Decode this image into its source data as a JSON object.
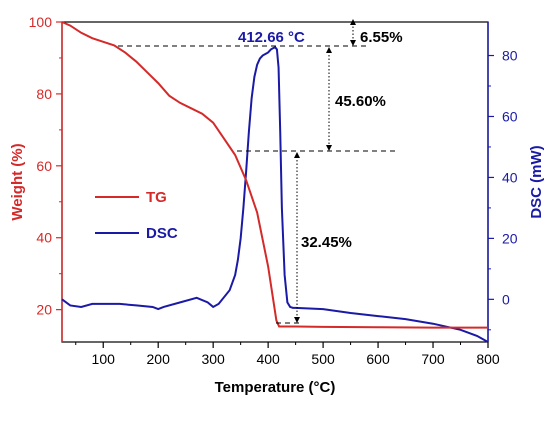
{
  "chart_data": {
    "type": "line",
    "xlabel": "Temperature (°C)",
    "ylabel_left": "Weight (%)",
    "ylabel_right": "DSC (mW)",
    "xlim": [
      25,
      800
    ],
    "ylim_left": [
      11,
      100
    ],
    "ylim_right": [
      -14,
      91
    ],
    "xticks": [
      100,
      200,
      300,
      400,
      500,
      600,
      700,
      800
    ],
    "yticks_left": [
      20,
      40,
      60,
      80,
      100
    ],
    "yticks_right": [
      0,
      20,
      40,
      60,
      80
    ],
    "colors": {
      "TG": "#d42a2a",
      "DSC": "#1a1aa6",
      "axis": "#000000"
    },
    "legend_position": "center-left",
    "series": [
      {
        "name": "TG",
        "axis": "left",
        "x": [
          25,
          40,
          60,
          80,
          100,
          120,
          140,
          160,
          180,
          200,
          220,
          240,
          260,
          280,
          300,
          320,
          340,
          360,
          380,
          400,
          410,
          415,
          420,
          430,
          450,
          500,
          600,
          700,
          750,
          800
        ],
        "y": [
          100,
          99,
          97,
          95.5,
          94.5,
          93.5,
          91.5,
          89,
          86,
          83,
          79.5,
          77.5,
          76,
          74.5,
          72,
          67.5,
          63,
          56,
          47,
          32,
          22,
          17,
          15.3,
          15.3,
          15.3,
          15.2,
          15.1,
          15.0,
          15.0,
          15.0
        ]
      },
      {
        "name": "DSC",
        "axis": "right",
        "x": [
          25,
          40,
          60,
          80,
          100,
          130,
          160,
          190,
          200,
          210,
          240,
          270,
          290,
          300,
          310,
          330,
          340,
          345,
          350,
          355,
          360,
          365,
          370,
          375,
          380,
          385,
          390,
          395,
          400,
          405,
          410,
          413,
          416,
          419,
          422,
          425,
          430,
          435,
          440,
          445,
          450,
          500,
          550,
          600,
          650,
          700,
          750,
          780,
          800
        ],
        "y": [
          0,
          -2,
          -2.5,
          -1.5,
          -1.5,
          -1.5,
          -2,
          -2.5,
          -3.2,
          -2.5,
          -1,
          0.5,
          -1,
          -2.5,
          -1.5,
          3,
          8,
          13,
          20,
          30,
          42,
          55,
          66,
          73,
          77,
          79,
          80,
          80.5,
          81,
          82,
          82.5,
          82.66,
          82,
          76,
          55,
          30,
          8,
          -1,
          -2.5,
          -2.8,
          -2.8,
          -3.2,
          -4.5,
          -5.5,
          -6.5,
          -8,
          -10,
          -12,
          -14
        ]
      }
    ],
    "annotations": {
      "peak_label": "412.66 °C",
      "loss1": "6.55%",
      "loss2": "45.60%",
      "loss3": "32.45%"
    },
    "legend": [
      "TG",
      "DSC"
    ]
  }
}
